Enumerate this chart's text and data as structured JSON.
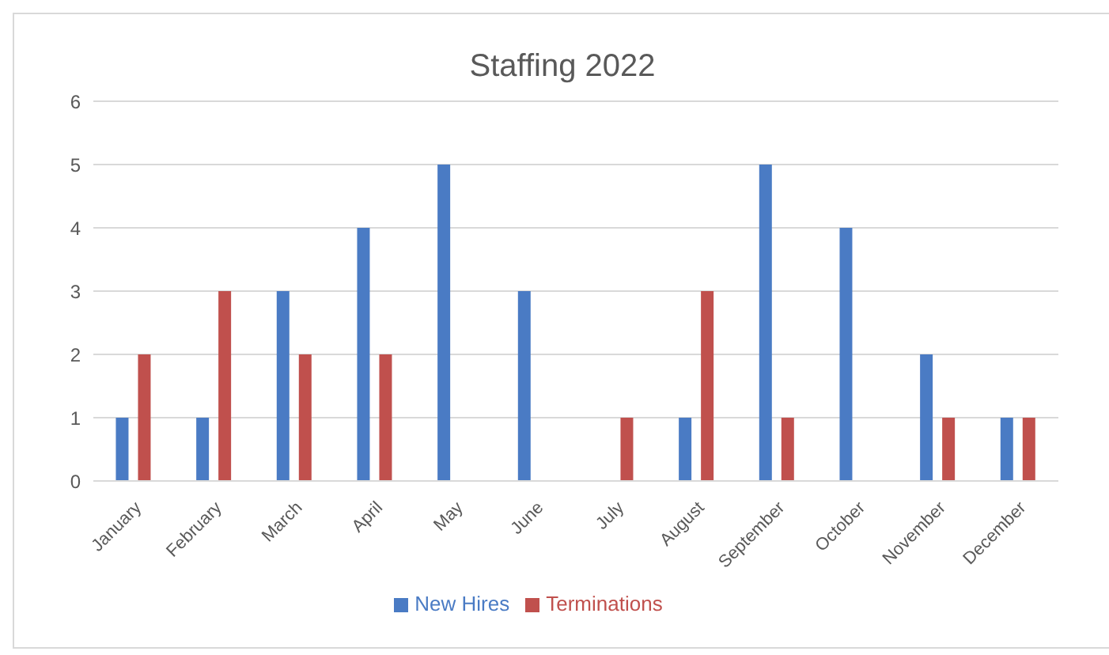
{
  "chart_data": {
    "type": "bar",
    "title": "Staffing 2022",
    "categories": [
      "January",
      "February",
      "March",
      "April",
      "May",
      "June",
      "July",
      "August",
      "September",
      "October",
      "November",
      "December"
    ],
    "series": [
      {
        "name": "New Hires",
        "color": "#4a7bc4",
        "values": [
          1,
          1,
          3,
          4,
          5,
          3,
          0,
          1,
          5,
          4,
          2,
          1
        ]
      },
      {
        "name": "Terminations",
        "color": "#c0504d",
        "values": [
          2,
          3,
          2,
          2,
          0,
          0,
          1,
          3,
          1,
          0,
          1,
          1
        ]
      }
    ],
    "ylim": [
      0,
      6
    ],
    "yticks": [
      0,
      1,
      2,
      3,
      4,
      5,
      6
    ],
    "grid": "y",
    "legend": "bottom"
  }
}
